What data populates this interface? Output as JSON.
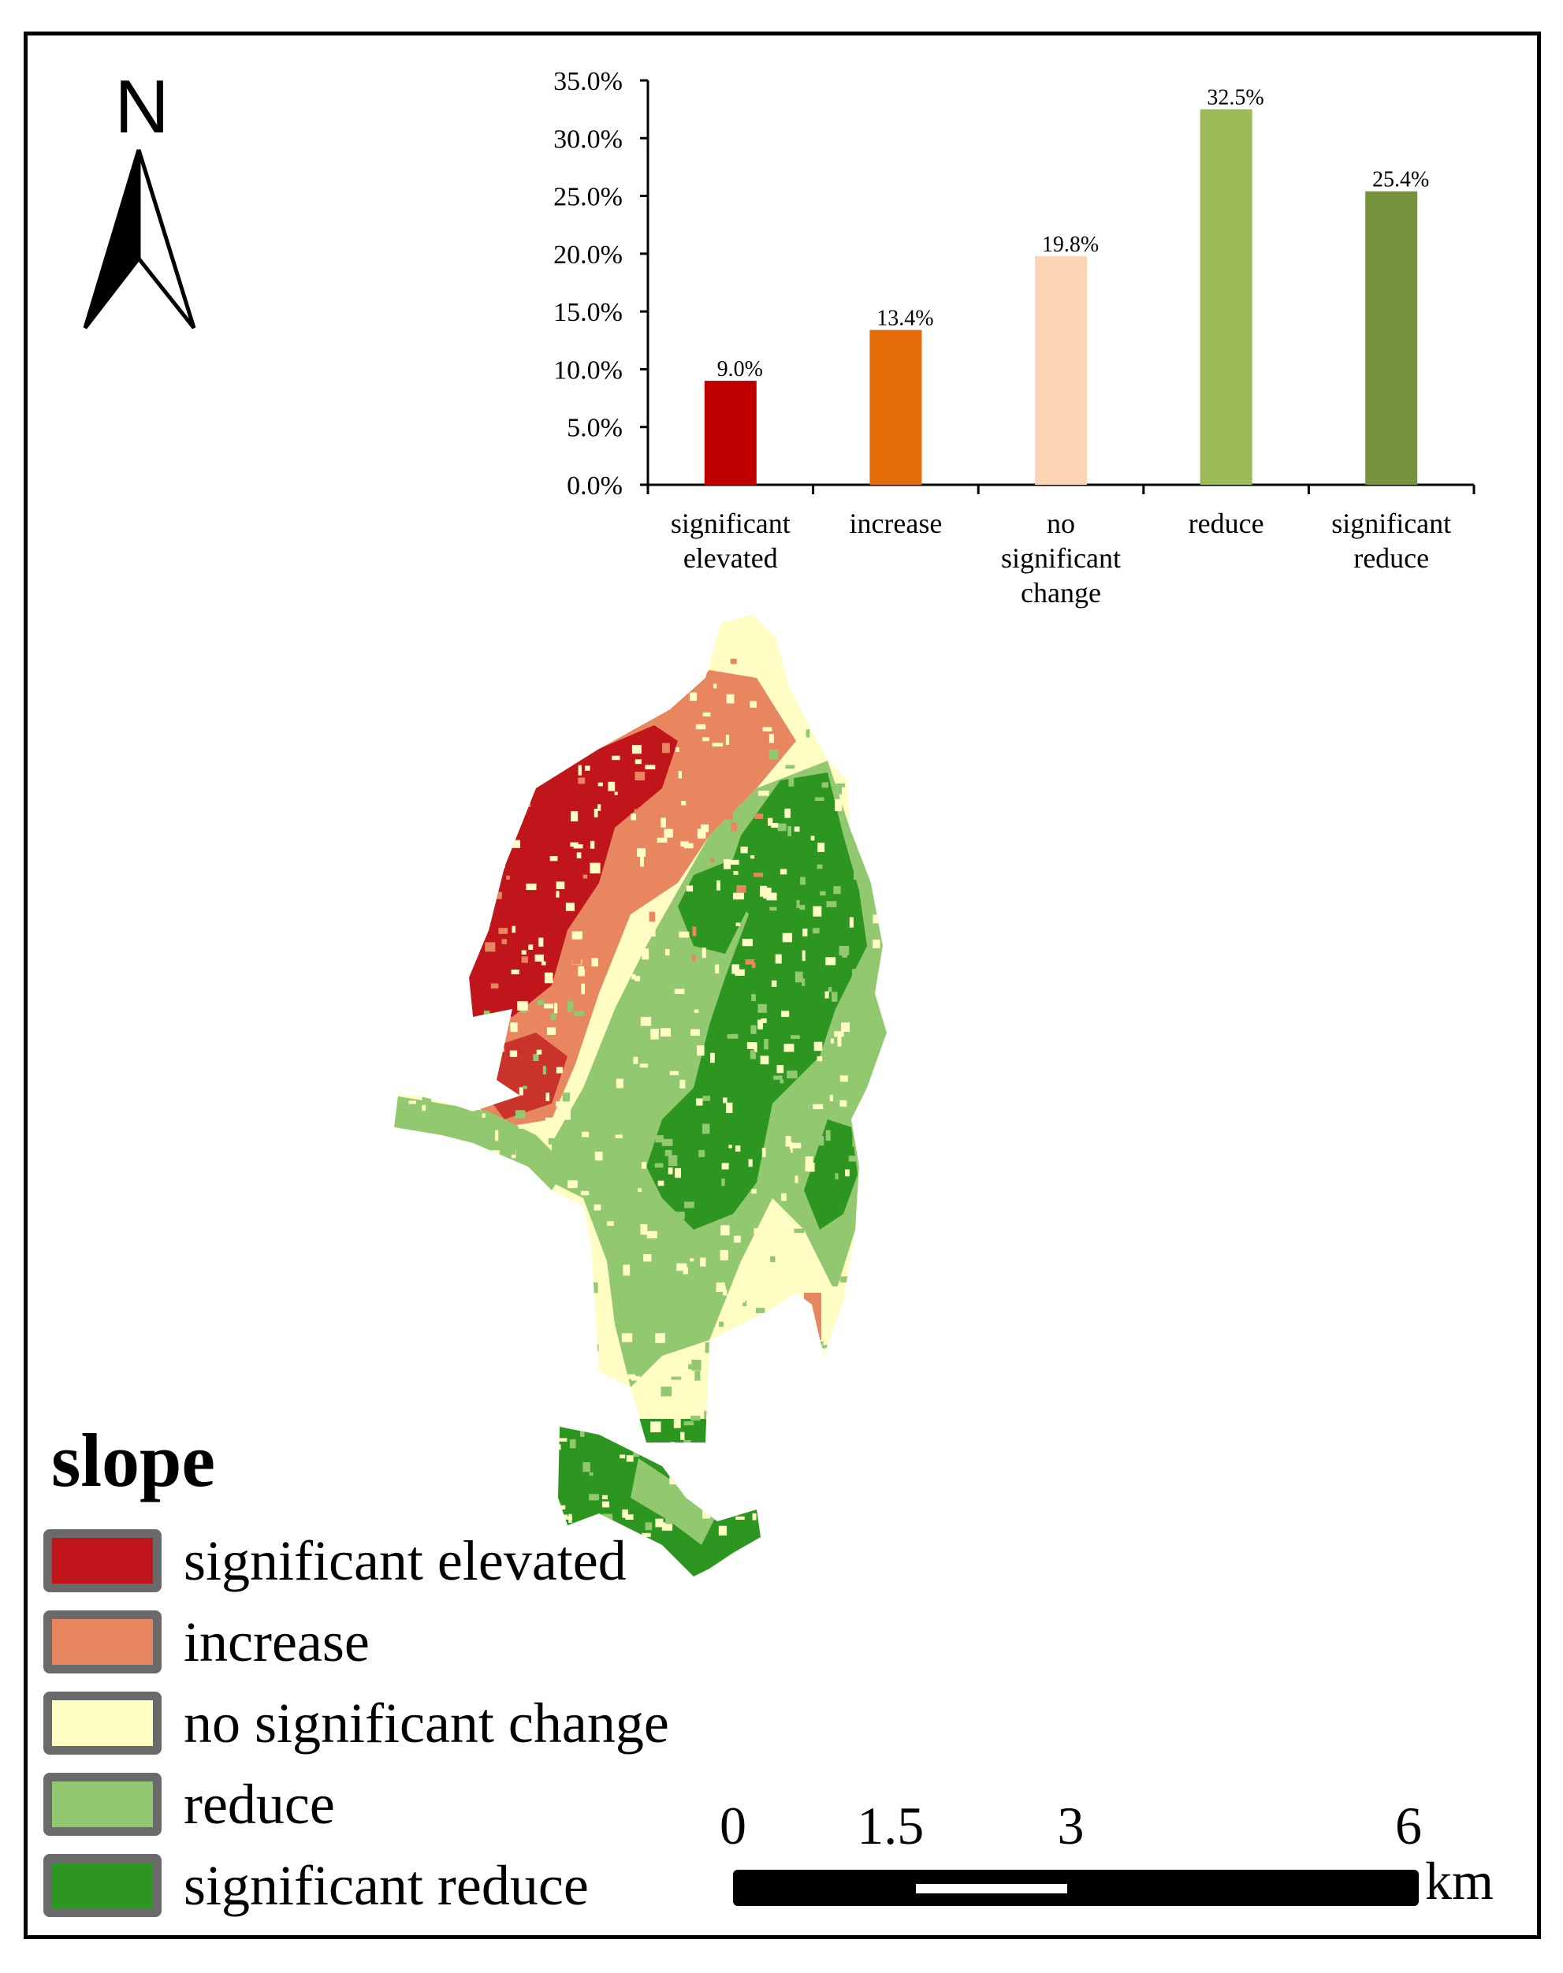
{
  "north_arrow": {
    "letter": "N",
    "icon": "north-arrow-icon"
  },
  "chart_data": {
    "type": "bar",
    "categories": [
      [
        "significant",
        "elevated"
      ],
      [
        "increase"
      ],
      [
        "no",
        "significant",
        "change"
      ],
      [
        "reduce"
      ],
      [
        "significant",
        "reduce"
      ]
    ],
    "values": [
      9.0,
      13.4,
      19.8,
      32.5,
      25.4
    ],
    "value_labels": [
      "9.0%",
      "13.4%",
      "19.8%",
      "32.5%",
      "25.4%"
    ],
    "colors": [
      "#c00000",
      "#e36c09",
      "#fcd5b4",
      "#9bbb59",
      "#76923c"
    ],
    "y_ticks": [
      "35.0%",
      "30.0%",
      "25.0%",
      "20.0%",
      "15.0%",
      "10.0%",
      "5.0%",
      "0.0%"
    ],
    "ylim": [
      0,
      35
    ],
    "grid": false,
    "title": "",
    "xlabel": "",
    "ylabel": ""
  },
  "legend": {
    "title": "slope",
    "items": [
      {
        "label": "significant elevated",
        "color": "#c0161b"
      },
      {
        "label": "increase",
        "color": "#e8875f"
      },
      {
        "label": "no significant change",
        "color": "#fffdc3"
      },
      {
        "label": "reduce",
        "color": "#92c86f"
      },
      {
        "label": "significant reduce",
        "color": "#2d9621"
      }
    ]
  },
  "scale_bar": {
    "labels": [
      "0",
      "1.5",
      "3",
      "6"
    ],
    "values": [
      0,
      1.5,
      3,
      6
    ],
    "unit": "km"
  },
  "map_colors": {
    "significant_elevated": "#c0161b",
    "increase": "#e8875f",
    "no_significant_change": "#fffdc3",
    "reduce": "#92c86f",
    "significant_reduce": "#2d9621"
  }
}
